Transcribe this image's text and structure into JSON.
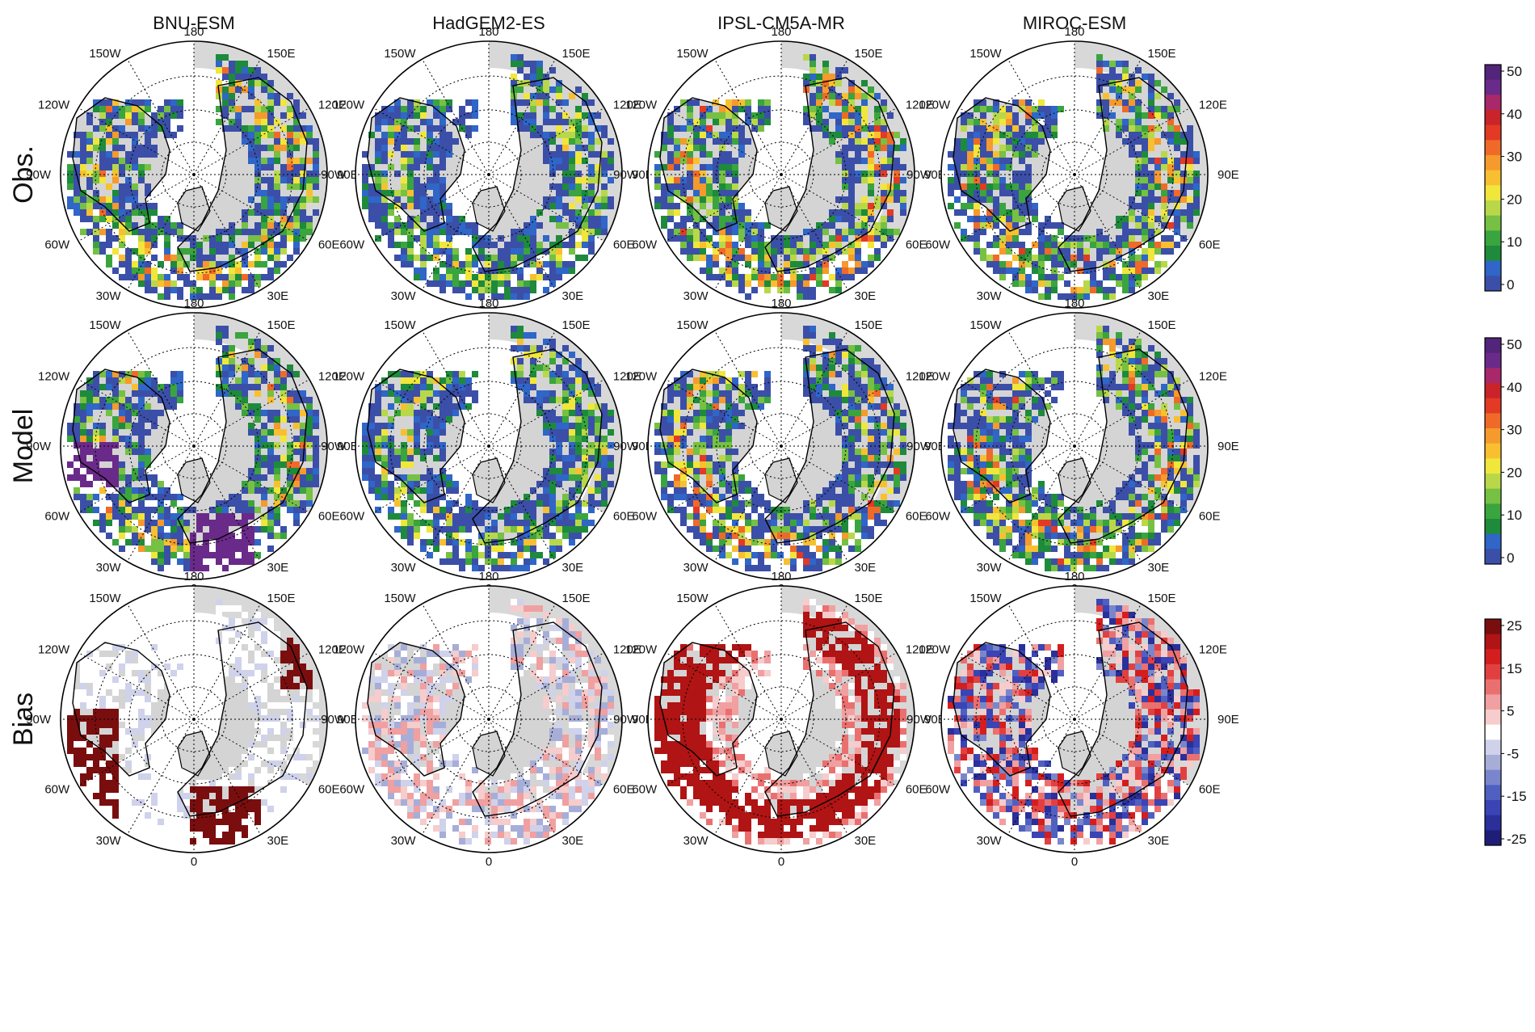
{
  "columns": [
    "BNU-ESM",
    "HadGEM2-ES",
    "IPSL-CM5A-MR",
    "MIROC-ESM"
  ],
  "rows": [
    {
      "label": "Obs.",
      "kind": "abs"
    },
    {
      "label": "Model",
      "kind": "abs"
    },
    {
      "label": "Bias",
      "kind": "bias"
    }
  ],
  "lon_labels": {
    "top": "180",
    "bottom": "0",
    "left": [
      "150W",
      "120W",
      "90W",
      "60W",
      "30W"
    ],
    "right": [
      "150E",
      "120E",
      "90E",
      "60E",
      "30E"
    ]
  },
  "colorbars": [
    {
      "row": "Obs.",
      "ticks": [
        "50",
        "40",
        "30",
        "20",
        "10",
        "0"
      ],
      "colors": [
        "#3b4fa8",
        "#2f66c8",
        "#1e8a3c",
        "#3aa43e",
        "#76c043",
        "#b8d84a",
        "#f0e63c",
        "#f8c030",
        "#f59a2c",
        "#ef6a28",
        "#e23a25",
        "#c8242a",
        "#a8286a",
        "#6a2a8a",
        "#52247a"
      ]
    },
    {
      "row": "Model",
      "ticks": [
        "50",
        "40",
        "30",
        "20",
        "10",
        "0"
      ],
      "colors": [
        "#3b4fa8",
        "#2f66c8",
        "#1e8a3c",
        "#3aa43e",
        "#76c043",
        "#b8d84a",
        "#f0e63c",
        "#f8c030",
        "#f59a2c",
        "#ef6a28",
        "#e23a25",
        "#c8242a",
        "#a8286a",
        "#6a2a8a",
        "#52247a"
      ]
    },
    {
      "row": "Bias",
      "ticks": [
        "25",
        "15",
        "5",
        "-5",
        "-15",
        "-25"
      ],
      "colors": [
        "#1e1e78",
        "#2a2f9a",
        "#3a44b4",
        "#5060c0",
        "#7a86cc",
        "#a6aed8",
        "#cfd2ea",
        "#ffffff",
        "#f6cccc",
        "#f0a0a0",
        "#ea7070",
        "#e24040",
        "#d41e1e",
        "#b01414",
        "#7a0e0e"
      ]
    }
  ],
  "palette": {
    "land_gray": "#d4d4d4",
    "low_blue": "#3b4fa8",
    "bias_red": "#b01414",
    "bias_blue": "#2a2f9a"
  }
}
